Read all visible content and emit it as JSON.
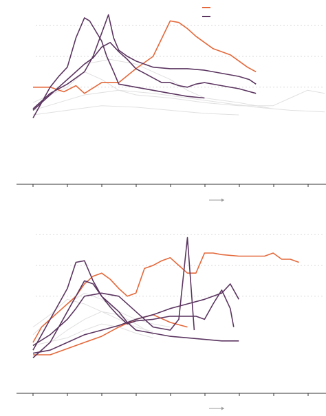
{
  "colors": {
    "orange": "#e4683a",
    "purple": "#5b3560",
    "gray": "#e0e0e0",
    "grid": "#d9d9d9",
    "axis": "#333333",
    "arrow": "#999999"
  },
  "chart_data": [
    {
      "type": "line",
      "title": "",
      "xlabel": "",
      "ylabel": "",
      "xlim": [
        0,
        17
      ],
      "ylim": [
        -3.3,
        8.3
      ],
      "gridlines_y": [
        3,
        5,
        7
      ],
      "grid": true,
      "legend": {
        "placement": "top-right",
        "entries": [
          {
            "color_key": "orange"
          },
          {
            "color_key": "purple"
          }
        ]
      },
      "arrow_hint": "right",
      "series": [
        {
          "color": "orange",
          "points": [
            [
              0,
              3
            ],
            [
              1,
              3
            ],
            [
              1.8,
              2.7
            ],
            [
              2.5,
              3.1
            ],
            [
              3,
              2.6
            ],
            [
              4,
              3.3
            ],
            [
              5,
              3.3
            ],
            [
              6,
              4.2
            ],
            [
              7,
              5
            ],
            [
              8,
              7.3
            ],
            [
              8.5,
              7.2
            ],
            [
              9,
              6.8
            ],
            [
              9.5,
              6.3
            ],
            [
              10,
              5.9
            ],
            [
              10.5,
              5.5
            ],
            [
              11,
              5.3
            ],
            [
              11.5,
              5.1
            ],
            [
              12,
              4.7
            ],
            [
              12.5,
              4.3
            ],
            [
              13,
              4
            ]
          ]
        },
        {
          "color": "purple",
          "points": [
            [
              0,
              1.5
            ],
            [
              0.5,
              2
            ],
            [
              1,
              2.5
            ],
            [
              1.5,
              3
            ],
            [
              2,
              3.5
            ],
            [
              2.5,
              4
            ],
            [
              3,
              4.5
            ],
            [
              3.5,
              4.9
            ],
            [
              4,
              5.6
            ],
            [
              4.5,
              5.9
            ],
            [
              5,
              5.3
            ],
            [
              5.5,
              4.8
            ],
            [
              6,
              4.2
            ],
            [
              6.5,
              3.9
            ],
            [
              7,
              3.6
            ],
            [
              7.5,
              3.3
            ],
            [
              8,
              3.3
            ],
            [
              8.5,
              3.1
            ],
            [
              9,
              3
            ],
            [
              9.5,
              3.2
            ],
            [
              10,
              3.3
            ],
            [
              11,
              3.1
            ],
            [
              12,
              2.9
            ],
            [
              13,
              2.6
            ]
          ]
        },
        {
          "color": "purple",
          "points": [
            [
              0,
              1
            ],
            [
              0.5,
              2
            ],
            [
              1,
              3
            ],
            [
              1.5,
              3.7
            ],
            [
              2,
              4.3
            ],
            [
              2.5,
              6.2
            ],
            [
              3,
              7.5
            ],
            [
              3.3,
              7.3
            ],
            [
              4,
              6
            ],
            [
              4.3,
              5
            ],
            [
              4.7,
              4
            ],
            [
              5,
              3.2
            ],
            [
              6,
              3
            ],
            [
              7,
              2.8
            ],
            [
              8,
              2.6
            ],
            [
              9,
              2.4
            ],
            [
              10,
              2.3
            ]
          ]
        },
        {
          "color": "purple",
          "points": [
            [
              0,
              1.6
            ],
            [
              1,
              2.6
            ],
            [
              2,
              3.2
            ],
            [
              3,
              4
            ],
            [
              3.5,
              5
            ],
            [
              4,
              6.5
            ],
            [
              4.4,
              7.7
            ],
            [
              4.7,
              6.2
            ],
            [
              5,
              5.4
            ],
            [
              5.5,
              5
            ],
            [
              6,
              4.7
            ],
            [
              7,
              4.3
            ],
            [
              8,
              4.2
            ],
            [
              9,
              4.2
            ],
            [
              10,
              4.1
            ],
            [
              11,
              3.9
            ],
            [
              12,
              3.7
            ],
            [
              12.6,
              3.5
            ],
            [
              13,
              3.2
            ]
          ]
        },
        {
          "color": "gray",
          "points": [
            [
              0,
              2
            ],
            [
              2,
              3
            ],
            [
              3,
              4
            ],
            [
              4,
              3.5
            ],
            [
              5,
              2.8
            ],
            [
              6,
              2.5
            ],
            [
              8,
              2.3
            ],
            [
              10,
              2
            ],
            [
              12,
              1.8
            ],
            [
              14,
              1.8
            ],
            [
              15,
              2.3
            ],
            [
              16,
              2.8
            ],
            [
              17,
              2.6
            ]
          ]
        },
        {
          "color": "gray",
          "points": [
            [
              0,
              1.5
            ],
            [
              1.5,
              2
            ],
            [
              3,
              2.5
            ],
            [
              5,
              2.8
            ],
            [
              7,
              2.6
            ],
            [
              9,
              2.3
            ],
            [
              11,
              2
            ],
            [
              13,
              1.7
            ],
            [
              15,
              1.5
            ],
            [
              17,
              1.4
            ]
          ]
        },
        {
          "color": "gray",
          "points": [
            [
              1,
              2.5
            ],
            [
              2,
              3.5
            ],
            [
              3,
              4.5
            ],
            [
              4.5,
              4.8
            ],
            [
              6,
              4.5
            ],
            [
              7,
              4
            ],
            [
              8,
              3.5
            ],
            [
              9,
              2.8
            ],
            [
              10,
              2.3
            ],
            [
              12,
              2
            ],
            [
              14,
              1.6
            ]
          ]
        },
        {
          "color": "gray",
          "points": [
            [
              0,
              1.2
            ],
            [
              2,
              1.5
            ],
            [
              4,
              1.8
            ],
            [
              6,
              1.7
            ],
            [
              8,
              1.5
            ],
            [
              10,
              1.3
            ],
            [
              12,
              1.2
            ]
          ]
        }
      ]
    },
    {
      "type": "line",
      "title": "",
      "xlabel": "",
      "ylabel": "",
      "xlim": [
        0,
        17
      ],
      "ylim": [
        -3.3,
        8.3
      ],
      "gridlines_y": [
        3,
        5,
        7
      ],
      "grid": true,
      "legend": null,
      "arrow_hint": "right",
      "series": [
        {
          "color": "orange",
          "points": [
            [
              0,
              0
            ],
            [
              0.5,
              1
            ],
            [
              1,
              1.5
            ],
            [
              1.5,
              2
            ],
            [
              2,
              2.5
            ],
            [
              2.5,
              3
            ],
            [
              3,
              3.8
            ],
            [
              3.5,
              4.3
            ],
            [
              4,
              4.5
            ],
            [
              4.5,
              4.1
            ],
            [
              5,
              3.5
            ],
            [
              5.5,
              3
            ],
            [
              6,
              3.2
            ],
            [
              6.5,
              4.8
            ],
            [
              7,
              5
            ],
            [
              7.5,
              5.3
            ],
            [
              8,
              5.5
            ],
            [
              8.5,
              5
            ],
            [
              9,
              4.5
            ],
            [
              9.5,
              4.5
            ],
            [
              10,
              5.8
            ],
            [
              10.5,
              5.8
            ],
            [
              11,
              5.7
            ],
            [
              12,
              5.6
            ],
            [
              13,
              5.6
            ],
            [
              13.5,
              5.6
            ],
            [
              14,
              5.8
            ],
            [
              14.5,
              5.4
            ],
            [
              15,
              5.4
            ],
            [
              15.5,
              5.2
            ]
          ]
        },
        {
          "color": "orange",
          "points": [
            [
              0,
              -0.8
            ],
            [
              1,
              -0.8
            ],
            [
              2,
              -0.4
            ],
            [
              3,
              0
            ],
            [
              4,
              0.4
            ],
            [
              5,
              1
            ],
            [
              6,
              1.5
            ],
            [
              7,
              1.8
            ],
            [
              8,
              1.3
            ],
            [
              9,
              1
            ]
          ]
        },
        {
          "color": "purple",
          "points": [
            [
              0,
              -1
            ],
            [
              1,
              0
            ],
            [
              1.5,
              1
            ],
            [
              2,
              2
            ],
            [
              2.5,
              3
            ],
            [
              3,
              4
            ],
            [
              3.5,
              3.8
            ],
            [
              4,
              3
            ],
            [
              4.5,
              2.3
            ],
            [
              5,
              1.7
            ],
            [
              5.5,
              1.2
            ],
            [
              6,
              1.4
            ],
            [
              7,
              1.5
            ],
            [
              8,
              1.7
            ],
            [
              9,
              1.7
            ],
            [
              9.5,
              1.7
            ],
            [
              10,
              1.5
            ],
            [
              10.5,
              2.5
            ],
            [
              11,
              3.4
            ],
            [
              11.5,
              2.2
            ],
            [
              11.7,
              1
            ]
          ]
        },
        {
          "color": "purple",
          "points": [
            [
              0,
              -0.5
            ],
            [
              0.5,
              0.5
            ],
            [
              1,
              1.5
            ],
            [
              1.5,
              2.5
            ],
            [
              2,
              3.5
            ],
            [
              2.5,
              5.2
            ],
            [
              3,
              5.3
            ],
            [
              3.5,
              4
            ],
            [
              4,
              3
            ],
            [
              4.5,
              2.5
            ],
            [
              5,
              2
            ],
            [
              5.5,
              1.3
            ],
            [
              6,
              0.8
            ],
            [
              7,
              0.6
            ],
            [
              8,
              0.4
            ],
            [
              9,
              0.3
            ],
            [
              10,
              0.2
            ],
            [
              11,
              0.1
            ],
            [
              12,
              0.1
            ]
          ]
        },
        {
          "color": "purple",
          "points": [
            [
              0,
              -0.2
            ],
            [
              1,
              0.5
            ],
            [
              2,
              1.5
            ],
            [
              2.5,
              2.2
            ],
            [
              3,
              3
            ],
            [
              4,
              3.2
            ],
            [
              5,
              3
            ],
            [
              6,
              2
            ],
            [
              7,
              1
            ],
            [
              8,
              0.8
            ],
            [
              8.5,
              1.5
            ],
            [
              9,
              6.8
            ],
            [
              9.4,
              0.8
            ]
          ]
        },
        {
          "color": "purple",
          "points": [
            [
              0,
              -0.7
            ],
            [
              1,
              -0.5
            ],
            [
              2,
              0
            ],
            [
              3,
              0.5
            ],
            [
              4,
              0.8
            ],
            [
              5,
              1.1
            ],
            [
              6,
              1.5
            ],
            [
              7,
              1.8
            ],
            [
              8,
              2.2
            ],
            [
              9,
              2.5
            ],
            [
              10,
              2.8
            ],
            [
              11,
              3.2
            ],
            [
              11.5,
              3.8
            ],
            [
              12,
              2.8
            ]
          ]
        },
        {
          "color": "gray",
          "points": [
            [
              0,
              0.5
            ],
            [
              1,
              1.5
            ],
            [
              2,
              2.5
            ],
            [
              3,
              3.2
            ],
            [
              4,
              2.8
            ],
            [
              5,
              2
            ],
            [
              6,
              1.5
            ],
            [
              7,
              1.2
            ],
            [
              8,
              1
            ]
          ]
        },
        {
          "color": "gray",
          "points": [
            [
              0,
              1
            ],
            [
              1,
              1.8
            ],
            [
              2,
              2.8
            ],
            [
              3,
              2.5
            ],
            [
              4,
              2
            ],
            [
              5,
              1.5
            ],
            [
              6,
              1
            ],
            [
              7,
              0.7
            ]
          ]
        },
        {
          "color": "gray",
          "points": [
            [
              0,
              -0.2
            ],
            [
              2,
              0.3
            ],
            [
              3,
              0.8
            ],
            [
              4,
              1.2
            ],
            [
              5,
              1
            ],
            [
              6,
              0.6
            ],
            [
              7,
              0.3
            ]
          ]
        },
        {
          "color": "gray",
          "points": [
            [
              1,
              0
            ],
            [
              2,
              0.8
            ],
            [
              3,
              1.5
            ],
            [
              4,
              2
            ],
            [
              5,
              1.8
            ],
            [
              6,
              1.2
            ],
            [
              7,
              0.5
            ]
          ]
        }
      ]
    }
  ]
}
